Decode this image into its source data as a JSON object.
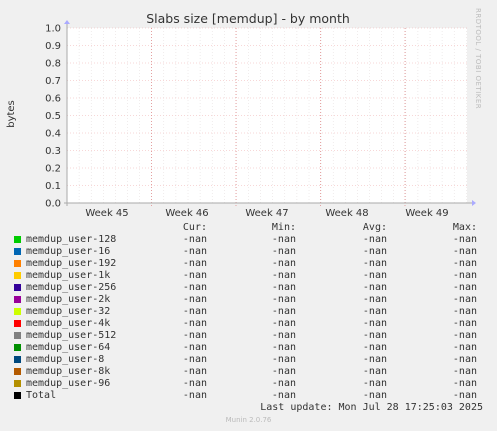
{
  "chart_data": {
    "type": "line",
    "title": "Slabs size [memdup] - by month",
    "ylabel": "bytes",
    "ylim": [
      0,
      1.0
    ],
    "yticks": [
      "0.0",
      "0.1",
      "0.2",
      "0.3",
      "0.4",
      "0.5",
      "0.6",
      "0.7",
      "0.8",
      "0.9",
      "1.0"
    ],
    "xticks": [
      "Week 45",
      "Week 46",
      "Week 47",
      "Week 48",
      "Week 49"
    ],
    "grid": true,
    "series": [
      {
        "name": "memdup_user-128",
        "color": "#00cc00",
        "cur": "-nan",
        "min": "-nan",
        "avg": "-nan",
        "max": "-nan"
      },
      {
        "name": "memdup_user-16",
        "color": "#0066b3",
        "cur": "-nan",
        "min": "-nan",
        "avg": "-nan",
        "max": "-nan"
      },
      {
        "name": "memdup_user-192",
        "color": "#ff8000",
        "cur": "-nan",
        "min": "-nan",
        "avg": "-nan",
        "max": "-nan"
      },
      {
        "name": "memdup_user-1k",
        "color": "#ffcc00",
        "cur": "-nan",
        "min": "-nan",
        "avg": "-nan",
        "max": "-nan"
      },
      {
        "name": "memdup_user-256",
        "color": "#330099",
        "cur": "-nan",
        "min": "-nan",
        "avg": "-nan",
        "max": "-nan"
      },
      {
        "name": "memdup_user-2k",
        "color": "#990099",
        "cur": "-nan",
        "min": "-nan",
        "avg": "-nan",
        "max": "-nan"
      },
      {
        "name": "memdup_user-32",
        "color": "#ccff00",
        "cur": "-nan",
        "min": "-nan",
        "avg": "-nan",
        "max": "-nan"
      },
      {
        "name": "memdup_user-4k",
        "color": "#ff0000",
        "cur": "-nan",
        "min": "-nan",
        "avg": "-nan",
        "max": "-nan"
      },
      {
        "name": "memdup_user-512",
        "color": "#808080",
        "cur": "-nan",
        "min": "-nan",
        "avg": "-nan",
        "max": "-nan"
      },
      {
        "name": "memdup_user-64",
        "color": "#008f00",
        "cur": "-nan",
        "min": "-nan",
        "avg": "-nan",
        "max": "-nan"
      },
      {
        "name": "memdup_user-8",
        "color": "#00487d",
        "cur": "-nan",
        "min": "-nan",
        "avg": "-nan",
        "max": "-nan"
      },
      {
        "name": "memdup_user-8k",
        "color": "#b35a00",
        "cur": "-nan",
        "min": "-nan",
        "avg": "-nan",
        "max": "-nan"
      },
      {
        "name": "memdup_user-96",
        "color": "#b38f00",
        "cur": "-nan",
        "min": "-nan",
        "avg": "-nan",
        "max": "-nan"
      },
      {
        "name": "Total",
        "color": "#000000",
        "cur": "-nan",
        "min": "-nan",
        "avg": "-nan",
        "max": "-nan"
      }
    ]
  },
  "legend_headers": {
    "cur": "Cur:",
    "min": "Min:",
    "avg": "Avg:",
    "max": "Max:"
  },
  "footer": {
    "last_update": "Last update: Mon Jul 28 17:25:03 2025",
    "version": "Munin 2.0.76",
    "side_text": "RRDTOOL / TOBI OETIKER"
  }
}
